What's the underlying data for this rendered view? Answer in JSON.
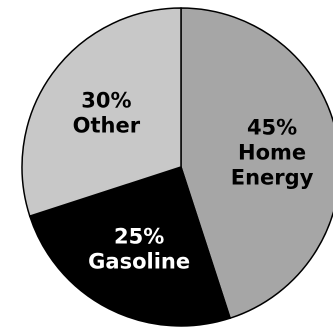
{
  "chart_data": {
    "type": "pie",
    "title": "",
    "slices": [
      {
        "name": "Home Energy",
        "value": 45,
        "percent_label": "45%",
        "label_lines": [
          "Home",
          "Energy"
        ],
        "color": "#a6a6a6",
        "label_color": "#000000"
      },
      {
        "name": "Gasoline",
        "value": 25,
        "percent_label": "25%",
        "label_lines": [
          "Gasoline"
        ],
        "color": "#000000",
        "label_color": "#ffffff"
      },
      {
        "name": "Other",
        "value": 30,
        "percent_label": "30%",
        "label_lines": [
          "Other"
        ],
        "color": "#c8c8c8",
        "label_color": "#000000"
      }
    ],
    "start_angle_deg": 0,
    "direction": "clockwise",
    "legend": "none",
    "labels": "inside"
  }
}
